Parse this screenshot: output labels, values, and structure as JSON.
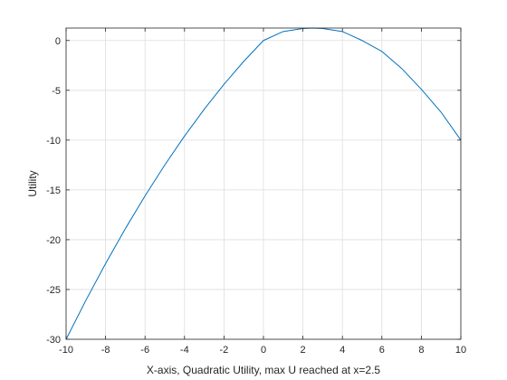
{
  "chart_data": {
    "type": "line",
    "title": "",
    "xlabel": "X-axis, Quadratic Utility, max U reached at x=2.5",
    "ylabel": "Utility",
    "xlim": [
      -10,
      10
    ],
    "ylim": [
      -30,
      1.25
    ],
    "xticks": [
      -10,
      -8,
      -6,
      -4,
      -2,
      0,
      2,
      4,
      6,
      8,
      10
    ],
    "yticks": [
      0,
      -5,
      -10,
      -15,
      -20,
      -25,
      -30
    ],
    "xtick_labels": [
      "-10",
      "-8",
      "-6",
      "-4",
      "-2",
      "0",
      "2",
      "4",
      "6",
      "8",
      "10"
    ],
    "ytick_labels": [
      "0",
      "-5",
      "-10",
      "-15",
      "-20",
      "-25",
      "-30"
    ],
    "grid": true,
    "line_color": "#0072BD",
    "series": [
      {
        "x": [
          -10,
          -9,
          -8,
          -7,
          -6,
          -5,
          -4,
          -3,
          -2,
          -1,
          0,
          1,
          2,
          2.5,
          3,
          4,
          5,
          6,
          7,
          8,
          9,
          10
        ],
        "values": [
          -30,
          -26.1,
          -22.4,
          -18.9,
          -15.6,
          -12.5,
          -9.6,
          -6.9,
          -4.4,
          -2.1,
          0,
          0.9,
          1.2,
          1.25,
          1.2,
          0.9,
          0,
          -1.1,
          -2.8,
          -4.9,
          -7.2,
          -10
        ]
      }
    ]
  }
}
